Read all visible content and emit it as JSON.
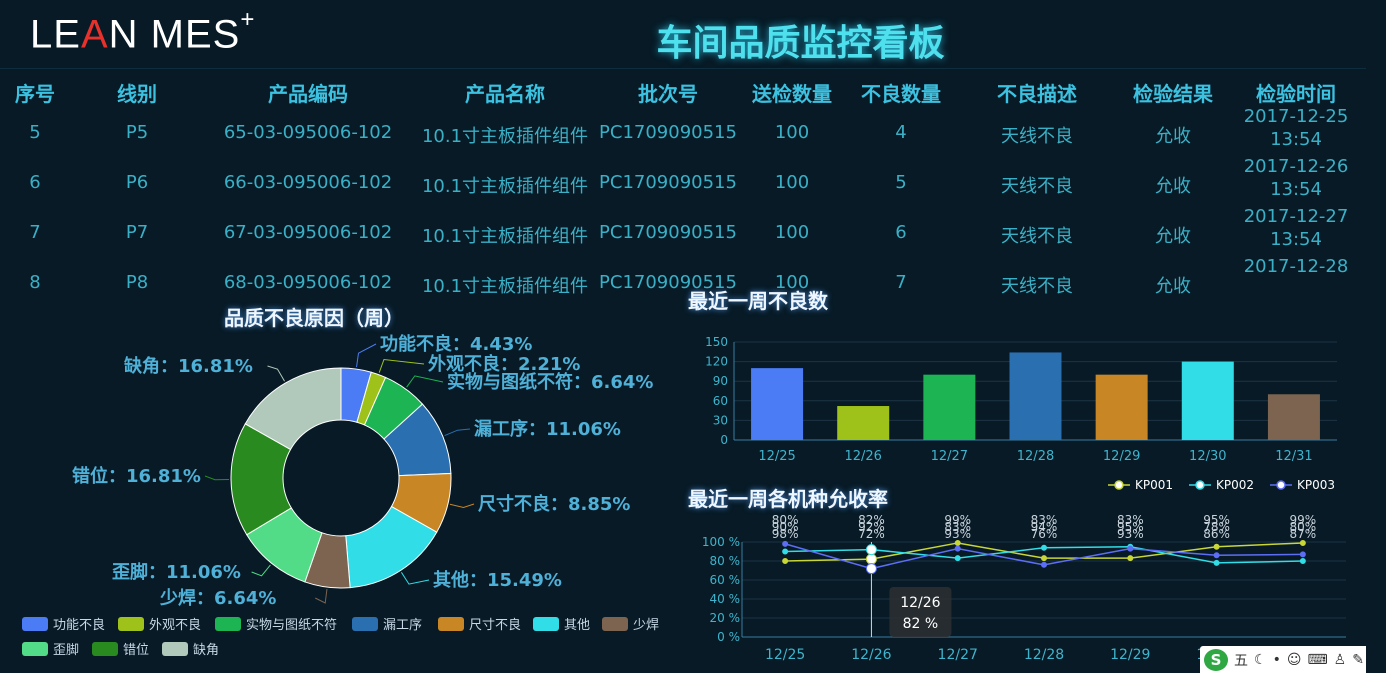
{
  "header": {
    "logo_text": "LEAN MES",
    "logo_plus": "+",
    "title": "车间品质监控看板"
  },
  "table": {
    "headers": [
      "序号",
      "线别",
      "产品编码",
      "产品名称",
      "批次号",
      "送检数量",
      "不良数量",
      "不良描述",
      "检验结果",
      "检验时间"
    ],
    "rows": [
      {
        "no": "5",
        "line": "P5",
        "code": "65-03-095006-102",
        "name": "10.1寸主板插件组件",
        "batch": "PC1709090515",
        "qty": "100",
        "bad": "4",
        "desc": "天线不良",
        "result": "允收",
        "date": "2017-12-25",
        "time": "13:54"
      },
      {
        "no": "6",
        "line": "P6",
        "code": "66-03-095006-102",
        "name": "10.1寸主板插件组件",
        "batch": "PC1709090515",
        "qty": "100",
        "bad": "5",
        "desc": "天线不良",
        "result": "允收",
        "date": "2017-12-26",
        "time": "13:54"
      },
      {
        "no": "7",
        "line": "P7",
        "code": "67-03-095006-102",
        "name": "10.1寸主板插件组件",
        "batch": "PC1709090515",
        "qty": "100",
        "bad": "6",
        "desc": "天线不良",
        "result": "允收",
        "date": "2017-12-27",
        "time": "13:54"
      },
      {
        "no": "8",
        "line": "P8",
        "code": "68-03-095006-102",
        "name": "10.1寸主板插件组件",
        "batch": "PC1709090515",
        "qty": "100",
        "bad": "7",
        "desc": "天线不良",
        "result": "允收",
        "date": "2017-12-28",
        "time": ""
      }
    ]
  },
  "chart_data": [
    {
      "type": "pie",
      "title": "品质不良原因（周）",
      "categories": [
        "功能不良",
        "外观不良",
        "实物与图纸不符",
        "漏工序",
        "尺寸不良",
        "其他",
        "少焊",
        "歪脚",
        "错位",
        "缺角"
      ],
      "values": [
        4.43,
        2.21,
        6.64,
        11.06,
        8.85,
        15.49,
        6.64,
        11.06,
        16.81,
        16.81
      ],
      "labels": [
        "功能不良：4.43%",
        "外观不良：2.21%",
        "实物与图纸不符：6.64%",
        "漏工序：11.06%",
        "尺寸不良：8.85%",
        "其他：15.49%",
        "少焊：6.64%",
        "歪脚：11.06%",
        "错位：16.81%",
        "缺角：16.81%"
      ],
      "colors": [
        "#4c7cf5",
        "#9ec219",
        "#1db454",
        "#2a6fb0",
        "#c98624",
        "#31dde6",
        "#7d6451",
        "#52dc87",
        "#298b1f",
        "#b0c9bb"
      ],
      "legend_position": "bottom-left"
    },
    {
      "type": "bar",
      "title": "最近一周不良数",
      "categories": [
        "12/25",
        "12/26",
        "12/27",
        "12/28",
        "12/29",
        "12/30",
        "12/31"
      ],
      "values": [
        110,
        52,
        100,
        134,
        100,
        120,
        70
      ],
      "colors": [
        "#4c7cf5",
        "#9ec219",
        "#1db454",
        "#2a6fb0",
        "#c98624",
        "#31dde6",
        "#7d6451"
      ],
      "ylim": [
        0,
        150
      ],
      "yticks": [
        0,
        30,
        60,
        90,
        120,
        150
      ],
      "grid": true
    },
    {
      "type": "line",
      "title": "最近一周各机种允收率",
      "categories": [
        "12/25",
        "12/26",
        "12/27",
        "12/28",
        "12/29",
        "12/30",
        "12/31"
      ],
      "series": [
        {
          "name": "KP001",
          "values": [
            80,
            82,
            99,
            83,
            83,
            95,
            99
          ],
          "color": "#c8d636"
        },
        {
          "name": "KP002",
          "values": [
            90,
            92,
            83,
            94,
            95,
            78,
            80
          ],
          "color": "#31dde6"
        },
        {
          "name": "KP003",
          "values": [
            98,
            72,
            93,
            76,
            93,
            86,
            87
          ],
          "color": "#5d6ef5"
        }
      ],
      "ylim": [
        0,
        100
      ],
      "yticks": [
        0,
        20,
        40,
        60,
        80,
        100
      ],
      "ytick_labels": [
        "0 %",
        "20 %",
        "40 %",
        "60 %",
        "80 %",
        "100 %"
      ],
      "legend_position": "top-right",
      "tooltip": {
        "category": "12/26",
        "value": "82 %"
      }
    }
  ],
  "ime": {
    "s_label": "S",
    "mode_label": "五"
  }
}
